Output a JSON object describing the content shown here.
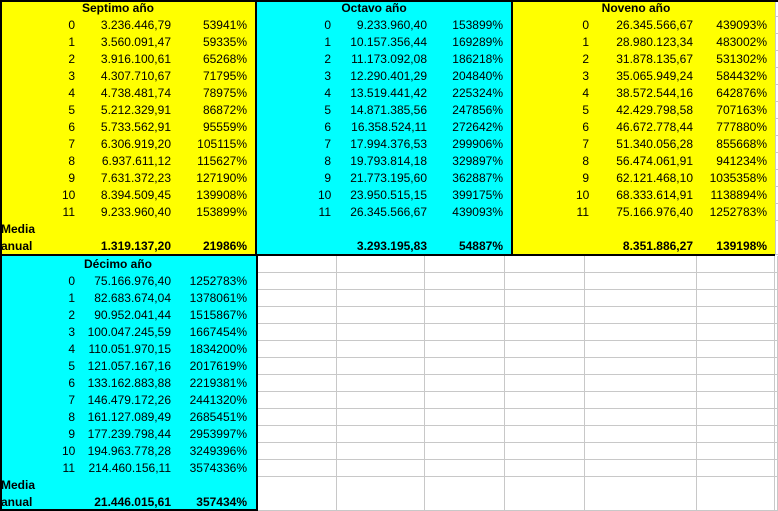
{
  "colors": {
    "section_yellow": "#FFFF00",
    "section_cyan": "#00FFFF",
    "gridline": "#C8C8C8",
    "border": "#000000",
    "text": "#000000",
    "background": "#FFFFFF"
  },
  "media_label": {
    "line1": "Media",
    "line2": "anual"
  },
  "sections": [
    {
      "title": "Septimo año",
      "theme": "yellow",
      "show_media_label": true,
      "rows": [
        {
          "n": "0",
          "value": "3.236.446,79",
          "pct": "53941%"
        },
        {
          "n": "1",
          "value": "3.560.091,47",
          "pct": "59335%"
        },
        {
          "n": "2",
          "value": "3.916.100,61",
          "pct": "65268%"
        },
        {
          "n": "3",
          "value": "4.307.710,67",
          "pct": "71795%"
        },
        {
          "n": "4",
          "value": "4.738.481,74",
          "pct": "78975%"
        },
        {
          "n": "5",
          "value": "5.212.329,91",
          "pct": "86872%"
        },
        {
          "n": "6",
          "value": "5.733.562,91",
          "pct": "95559%"
        },
        {
          "n": "7",
          "value": "6.306.919,20",
          "pct": "105115%"
        },
        {
          "n": "8",
          "value": "6.937.611,12",
          "pct": "115627%"
        },
        {
          "n": "9",
          "value": "7.631.372,23",
          "pct": "127190%"
        },
        {
          "n": "10",
          "value": "8.394.509,45",
          "pct": "139908%"
        },
        {
          "n": "11",
          "value": "9.233.960,40",
          "pct": "153899%"
        }
      ],
      "media": {
        "value": "1.319.137,20",
        "pct": "21986%"
      }
    },
    {
      "title": "Octavo año",
      "theme": "cyan",
      "show_media_label": false,
      "rows": [
        {
          "n": "0",
          "value": "9.233.960,40",
          "pct": "153899%"
        },
        {
          "n": "1",
          "value": "10.157.356,44",
          "pct": "169289%"
        },
        {
          "n": "2",
          "value": "11.173.092,08",
          "pct": "186218%"
        },
        {
          "n": "3",
          "value": "12.290.401,29",
          "pct": "204840%"
        },
        {
          "n": "4",
          "value": "13.519.441,42",
          "pct": "225324%"
        },
        {
          "n": "5",
          "value": "14.871.385,56",
          "pct": "247856%"
        },
        {
          "n": "6",
          "value": "16.358.524,11",
          "pct": "272642%"
        },
        {
          "n": "7",
          "value": "17.994.376,53",
          "pct": "299906%"
        },
        {
          "n": "8",
          "value": "19.793.814,18",
          "pct": "329897%"
        },
        {
          "n": "9",
          "value": "21.773.195,60",
          "pct": "362887%"
        },
        {
          "n": "10",
          "value": "23.950.515,15",
          "pct": "399175%"
        },
        {
          "n": "11",
          "value": "26.345.566,67",
          "pct": "439093%"
        }
      ],
      "media": {
        "value": "3.293.195,83",
        "pct": "54887%"
      }
    },
    {
      "title": "Noveno año",
      "theme": "yellow",
      "show_media_label": false,
      "rows": [
        {
          "n": "0",
          "value": "26.345.566,67",
          "pct": "439093%"
        },
        {
          "n": "1",
          "value": "28.980.123,34",
          "pct": "483002%"
        },
        {
          "n": "2",
          "value": "31.878.135,67",
          "pct": "531302%"
        },
        {
          "n": "3",
          "value": "35.065.949,24",
          "pct": "584432%"
        },
        {
          "n": "4",
          "value": "38.572.544,16",
          "pct": "642876%"
        },
        {
          "n": "5",
          "value": "42.429.798,58",
          "pct": "707163%"
        },
        {
          "n": "6",
          "value": "46.672.778,44",
          "pct": "777880%"
        },
        {
          "n": "7",
          "value": "51.340.056,28",
          "pct": "855668%"
        },
        {
          "n": "8",
          "value": "56.474.061,91",
          "pct": "941234%"
        },
        {
          "n": "9",
          "value": "62.121.468,10",
          "pct": "1035358%"
        },
        {
          "n": "10",
          "value": "68.333.614,91",
          "pct": "1138894%"
        },
        {
          "n": "11",
          "value": "75.166.976,40",
          "pct": "1252783%"
        }
      ],
      "media": {
        "value": "8.351.886,27",
        "pct": "139198%"
      }
    },
    {
      "title": "Décimo año",
      "theme": "cyan",
      "show_media_label": true,
      "rows": [
        {
          "n": "0",
          "value": "75.166.976,40",
          "pct": "1252783%"
        },
        {
          "n": "1",
          "value": "82.683.674,04",
          "pct": "1378061%"
        },
        {
          "n": "2",
          "value": "90.952.041,44",
          "pct": "1515867%"
        },
        {
          "n": "3",
          "value": "100.047.245,59",
          "pct": "1667454%"
        },
        {
          "n": "4",
          "value": "110.051.970,15",
          "pct": "1834200%"
        },
        {
          "n": "5",
          "value": "121.057.167,16",
          "pct": "2017619%"
        },
        {
          "n": "6",
          "value": "133.162.883,88",
          "pct": "2219381%"
        },
        {
          "n": "7",
          "value": "146.479.172,26",
          "pct": "2441320%"
        },
        {
          "n": "8",
          "value": "161.127.089,49",
          "pct": "2685451%"
        },
        {
          "n": "9",
          "value": "177.239.798,44",
          "pct": "2953997%"
        },
        {
          "n": "10",
          "value": "194.963.778,28",
          "pct": "3249396%"
        },
        {
          "n": "11",
          "value": "214.460.156,11",
          "pct": "3574336%"
        }
      ],
      "media": {
        "value": "21.446.015,61",
        "pct": "357434%"
      }
    }
  ]
}
